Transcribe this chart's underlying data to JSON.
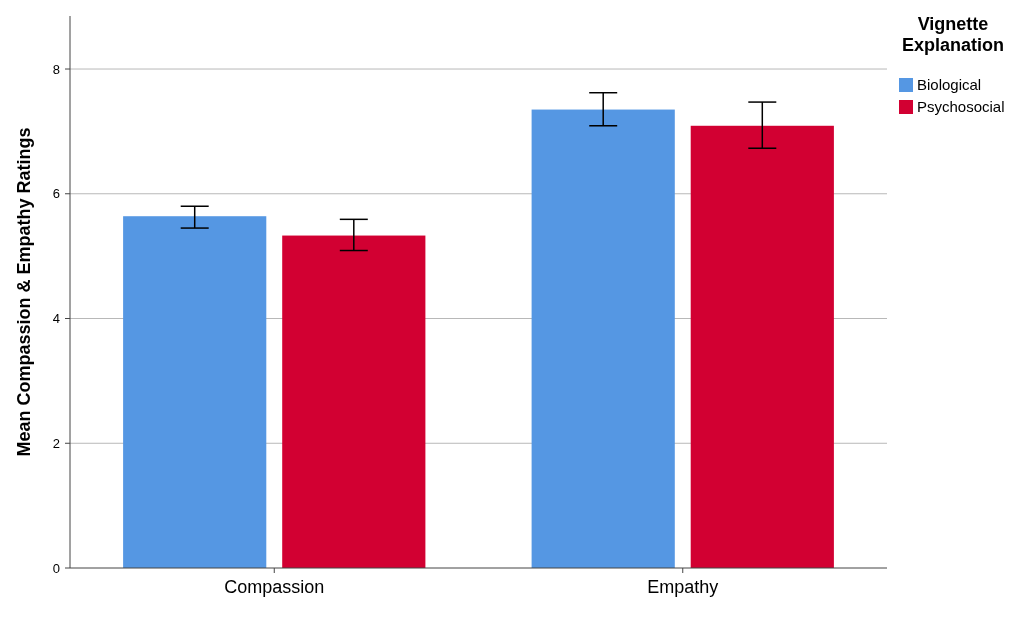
{
  "chart_data": {
    "type": "bar",
    "ylabel": "Mean Compassion & Empathy Ratings",
    "legend_title": "Vignette Explanation",
    "categories": [
      "Compassion",
      "Empathy"
    ],
    "series": [
      {
        "name": "Biological",
        "color": "#5597e3",
        "values": [
          5.64,
          7.35
        ],
        "errors": [
          [
            5.45,
            5.8
          ],
          [
            7.09,
            7.62
          ]
        ]
      },
      {
        "name": "Psychosocial",
        "color": "#d20032",
        "values": [
          5.33,
          7.09
        ],
        "errors": [
          [
            5.09,
            5.59
          ],
          [
            6.73,
            7.47
          ]
        ]
      }
    ],
    "ylim": [
      0,
      8.85
    ],
    "yticks": [
      0,
      2,
      4,
      6,
      8
    ],
    "grid": "y",
    "legend": "top right"
  }
}
